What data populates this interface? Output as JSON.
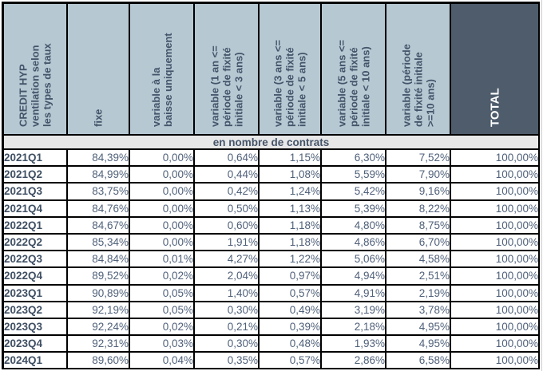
{
  "colors": {
    "header_bg": "#b6c8d2",
    "total_header_bg": "#4e5c6c",
    "header_text": "#44546a",
    "total_header_text": "#ffffff",
    "section_band_bg": "#e8e8e8",
    "row_label_text": "#3f4f63",
    "value_text": "#50617a",
    "border": "#000000",
    "margin_gridline": "#cccccc"
  },
  "chart_data": {
    "type": "table",
    "title": "CREDIT HYP ventilation selon les types de taux",
    "section_label": "en nombre de contrats",
    "header": [
      {
        "id": "credit-hyp",
        "label": "CREDIT HYP\nventilation selon\nles types de taux"
      },
      {
        "id": "fixe",
        "label": "fixe"
      },
      {
        "id": "variable-baisse",
        "label": "variable à la\nbaisse uniquement"
      },
      {
        "id": "variable-1an-3ans",
        "label": "variable (1 an <=\npériode de fixité\ninitiale < 3 ans)"
      },
      {
        "id": "variable-3ans-5ans",
        "label": "variable (3 ans <=\npériode de fixité\ninitiale < 5 ans)"
      },
      {
        "id": "variable-5ans-10ans",
        "label": "variable (5 ans <=\npériode de fixité\ninitiale < 10 ans)"
      },
      {
        "id": "variable-10ans-plus",
        "label": "variable (période\nde fixité initiale\n>=10 ans)"
      },
      {
        "id": "total",
        "label": "TOTAL"
      }
    ],
    "rows": [
      {
        "label": "2021Q1",
        "values": [
          "84,39%",
          "0,00%",
          "0,64%",
          "1,15%",
          "6,30%",
          "7,52%",
          "100,00%"
        ]
      },
      {
        "label": "2021Q2",
        "values": [
          "84,99%",
          "0,00%",
          "0,44%",
          "1,08%",
          "5,59%",
          "7,90%",
          "100,00%"
        ]
      },
      {
        "label": "2021Q3",
        "values": [
          "83,75%",
          "0,00%",
          "0,42%",
          "1,24%",
          "5,42%",
          "9,16%",
          "100,00%"
        ]
      },
      {
        "label": "2021Q4",
        "values": [
          "84,76%",
          "0,00%",
          "0,50%",
          "1,13%",
          "5,39%",
          "8,22%",
          "100,00%"
        ]
      },
      {
        "label": "2022Q1",
        "values": [
          "84,67%",
          "0,00%",
          "0,60%",
          "1,18%",
          "4,80%",
          "8,75%",
          "100,00%"
        ]
      },
      {
        "label": "2022Q2",
        "values": [
          "85,34%",
          "0,00%",
          "1,91%",
          "1,18%",
          "4,86%",
          "6,70%",
          "100,00%"
        ]
      },
      {
        "label": "2022Q3",
        "values": [
          "84,84%",
          "0,01%",
          "4,27%",
          "1,22%",
          "5,06%",
          "4,58%",
          "100,00%"
        ]
      },
      {
        "label": "2022Q4",
        "values": [
          "89,52%",
          "0,02%",
          "2,04%",
          "0,97%",
          "4,94%",
          "2,51%",
          "100,00%"
        ]
      },
      {
        "label": "2023Q1",
        "values": [
          "90,89%",
          "0,05%",
          "1,40%",
          "0,57%",
          "4,91%",
          "2,19%",
          "100,00%"
        ]
      },
      {
        "label": "2023Q2",
        "values": [
          "92,19%",
          "0,05%",
          "0,30%",
          "0,49%",
          "3,19%",
          "3,78%",
          "100,00%"
        ]
      },
      {
        "label": "2023Q3",
        "values": [
          "92,24%",
          "0,02%",
          "0,21%",
          "0,39%",
          "2,18%",
          "4,95%",
          "100,00%"
        ]
      },
      {
        "label": "2023Q4",
        "values": [
          "92,31%",
          "0,03%",
          "0,30%",
          "0,48%",
          "1,93%",
          "4,95%",
          "100,00%"
        ]
      },
      {
        "label": "2024Q1",
        "values": [
          "89,60%",
          "0,04%",
          "0,35%",
          "0,57%",
          "2,86%",
          "6,58%",
          "100,00%"
        ]
      }
    ]
  }
}
